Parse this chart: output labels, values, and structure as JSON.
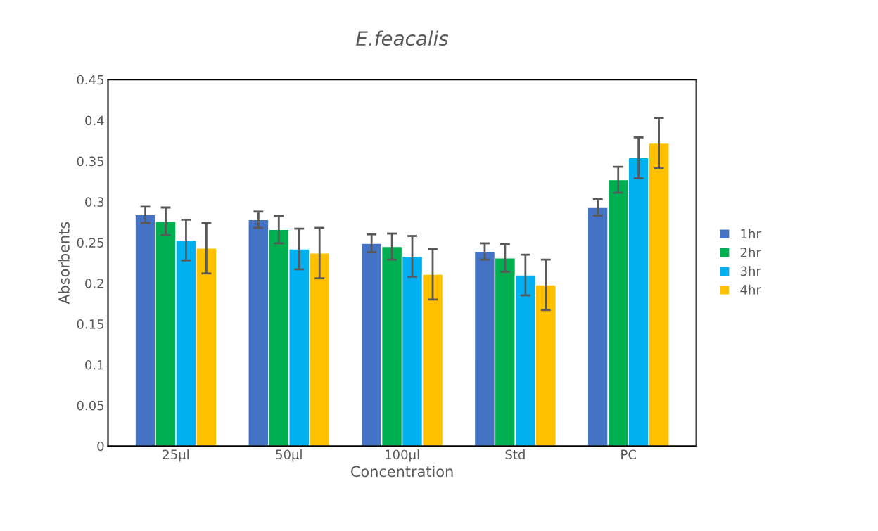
{
  "chart_data": {
    "type": "bar",
    "title": "E.feacalis",
    "xlabel": "Concentration",
    "ylabel": "Absorbents",
    "categories": [
      "25µl",
      "50µl",
      "100µl",
      "Std",
      "PC"
    ],
    "series": [
      {
        "name": "1hr",
        "color": "#4472c4",
        "values": [
          0.284,
          0.278,
          0.249,
          0.239,
          0.293
        ],
        "errors": [
          0.01,
          0.01,
          0.011,
          0.01,
          0.01
        ]
      },
      {
        "name": "2hr",
        "color": "#00b050",
        "values": [
          0.276,
          0.266,
          0.245,
          0.231,
          0.327
        ],
        "errors": [
          0.017,
          0.017,
          0.016,
          0.017,
          0.016
        ]
      },
      {
        "name": "3hr",
        "color": "#00b0f0",
        "values": [
          0.253,
          0.242,
          0.233,
          0.21,
          0.354
        ],
        "errors": [
          0.025,
          0.025,
          0.025,
          0.025,
          0.025
        ]
      },
      {
        "name": "4hr",
        "color": "#ffc000",
        "values": [
          0.243,
          0.237,
          0.211,
          0.198,
          0.372
        ],
        "errors": [
          0.031,
          0.031,
          0.031,
          0.031,
          0.031
        ]
      }
    ],
    "ylim": [
      0,
      0.45
    ],
    "yticks": [
      0,
      0.05,
      0.1,
      0.15,
      0.2,
      0.25,
      0.3,
      0.35,
      0.4,
      0.45
    ],
    "grid": false,
    "legend": "right"
  }
}
